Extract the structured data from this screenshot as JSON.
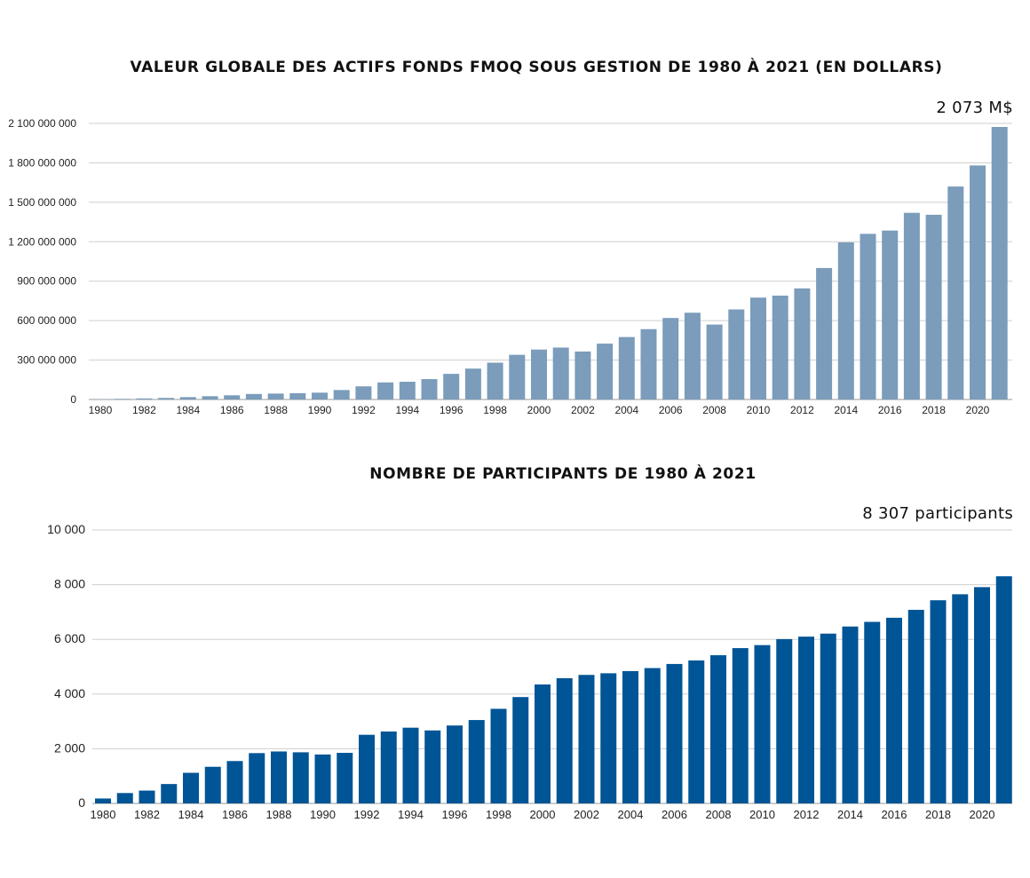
{
  "chart_data": [
    {
      "type": "bar",
      "title": "VALEUR GLOBALE DES ACTIFS FONDS FMOQ SOUS GESTION DE 1980 À 2021 (EN DOLLARS)",
      "annotation": "2 073 M$",
      "color": "#7b9cbb",
      "xlabel": "",
      "ylabel": "",
      "ylim": [
        0,
        2100000000
      ],
      "grid": true,
      "yticks": [
        0,
        300000000,
        600000000,
        900000000,
        1200000000,
        1500000000,
        1800000000,
        2100000000
      ],
      "ytick_labels": [
        "0",
        "300 000 000",
        "600 000 000",
        "900 000 000",
        "1 200 000 000",
        "1 500 000 000",
        "1 800 000 000",
        "2 100 000 000"
      ],
      "xtick_labels": [
        "1980",
        "1982",
        "1984",
        "1986",
        "1988",
        "1990",
        "1992",
        "1994",
        "1996",
        "1998",
        "2000",
        "2002",
        "2004",
        "2006",
        "2008",
        "2010",
        "2012",
        "2014",
        "2016",
        "2018",
        "2020"
      ],
      "categories": [
        "1980",
        "1981",
        "1982",
        "1983",
        "1984",
        "1985",
        "1986",
        "1987",
        "1988",
        "1989",
        "1990",
        "1991",
        "1992",
        "1993",
        "1994",
        "1995",
        "1996",
        "1997",
        "1998",
        "1999",
        "2000",
        "2001",
        "2002",
        "2003",
        "2004",
        "2005",
        "2006",
        "2007",
        "2008",
        "2009",
        "2010",
        "2011",
        "2012",
        "2013",
        "2014",
        "2015",
        "2016",
        "2017",
        "2018",
        "2019",
        "2020",
        "2021"
      ],
      "values": [
        2000000,
        5000000,
        8000000,
        12000000,
        18000000,
        25000000,
        32000000,
        42000000,
        45000000,
        48000000,
        52000000,
        72000000,
        100000000,
        130000000,
        135000000,
        155000000,
        195000000,
        235000000,
        280000000,
        340000000,
        380000000,
        395000000,
        365000000,
        425000000,
        475000000,
        535000000,
        620000000,
        660000000,
        570000000,
        685000000,
        775000000,
        790000000,
        845000000,
        1000000000,
        1195000000,
        1260000000,
        1285000000,
        1420000000,
        1405000000,
        1620000000,
        1780000000,
        2073000000
      ]
    },
    {
      "type": "bar",
      "title": "NOMBRE DE PARTICIPANTS DE 1980 À 2021",
      "annotation": "8 307 participants",
      "color": "#005596",
      "xlabel": "",
      "ylabel": "",
      "ylim": [
        0,
        10000
      ],
      "grid": true,
      "yticks": [
        0,
        2000,
        4000,
        6000,
        8000,
        10000
      ],
      "ytick_labels": [
        "0",
        "2 000",
        "4 000",
        "6 000",
        "8 000",
        "10 000"
      ],
      "xtick_labels": [
        "1980",
        "1982",
        "1984",
        "1986",
        "1988",
        "1990",
        "1992",
        "1994",
        "1996",
        "1998",
        "2000",
        "2002",
        "2004",
        "2006",
        "2008",
        "2010",
        "2012",
        "2014",
        "2016",
        "2018",
        "2020"
      ],
      "categories": [
        "1980",
        "1981",
        "1982",
        "1983",
        "1984",
        "1985",
        "1986",
        "1987",
        "1988",
        "1989",
        "1990",
        "1991",
        "1992",
        "1993",
        "1994",
        "1995",
        "1996",
        "1997",
        "1998",
        "1999",
        "2000",
        "2001",
        "2002",
        "2003",
        "2004",
        "2005",
        "2006",
        "2007",
        "2008",
        "2009",
        "2010",
        "2011",
        "2012",
        "2013",
        "2014",
        "2015",
        "2016",
        "2017",
        "2018",
        "2019",
        "2020",
        "2021"
      ],
      "values": [
        180,
        380,
        470,
        710,
        1120,
        1340,
        1550,
        1840,
        1900,
        1870,
        1790,
        1850,
        2510,
        2630,
        2770,
        2670,
        2850,
        3050,
        3460,
        3890,
        4350,
        4580,
        4700,
        4760,
        4840,
        4950,
        5100,
        5230,
        5420,
        5680,
        5790,
        6010,
        6100,
        6210,
        6470,
        6640,
        6790,
        7080,
        7430,
        7650,
        7910,
        8307
      ]
    }
  ]
}
